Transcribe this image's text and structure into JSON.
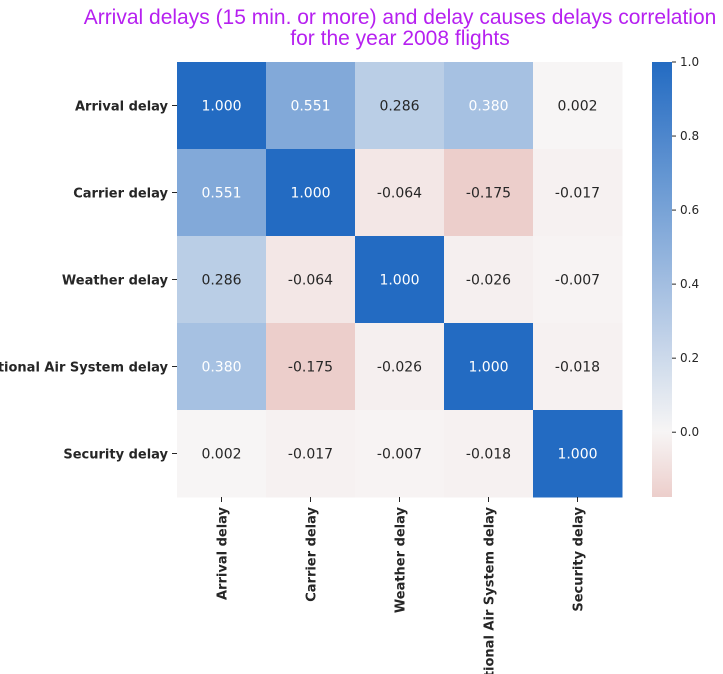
{
  "chart_data": {
    "type": "heatmap",
    "title_lines": [
      "Arrival delays (15 min. or more) and delay causes delays correlation",
      "for the year 2008 flights"
    ],
    "title_color": "#b620f0",
    "row_labels": [
      "Arrival delay",
      "Carrier delay",
      "Weather delay",
      "National Air System delay",
      "Security delay"
    ],
    "col_labels": [
      "Arrival delay",
      "Carrier delay",
      "Weather delay",
      "National Air System delay",
      "Security delay"
    ],
    "values": [
      [
        1.0,
        0.551,
        0.286,
        0.38,
        0.002
      ],
      [
        0.551,
        1.0,
        -0.064,
        -0.175,
        -0.017
      ],
      [
        0.286,
        -0.064,
        1.0,
        -0.026,
        -0.007
      ],
      [
        0.38,
        -0.175,
        -0.026,
        1.0,
        -0.018
      ],
      [
        0.002,
        -0.017,
        -0.007,
        -0.018,
        1.0
      ]
    ],
    "cell_labels": [
      [
        "1.000",
        "0.551",
        "0.286",
        "0.380",
        "0.002"
      ],
      [
        "0.551",
        "1.000",
        "-0.064",
        "-0.175",
        "-0.017"
      ],
      [
        "0.286",
        "-0.064",
        "1.000",
        "-0.026",
        "-0.007"
      ],
      [
        "0.380",
        "-0.175",
        "-0.026",
        "1.000",
        "-0.018"
      ],
      [
        "0.002",
        "-0.017",
        "-0.007",
        "-0.018",
        "1.000"
      ]
    ],
    "value_range": [
      -0.175,
      1.0
    ],
    "colorbar": {
      "ticks": [
        0.0,
        0.2,
        0.4,
        0.6,
        0.8,
        1.0
      ],
      "tick_labels": [
        "0.0",
        "0.2",
        "0.4",
        "0.6",
        "0.8",
        "1.0"
      ]
    },
    "colors": {
      "low": "#eccecb",
      "mid": "#f7f5f5",
      "high": "#236bc2"
    }
  }
}
